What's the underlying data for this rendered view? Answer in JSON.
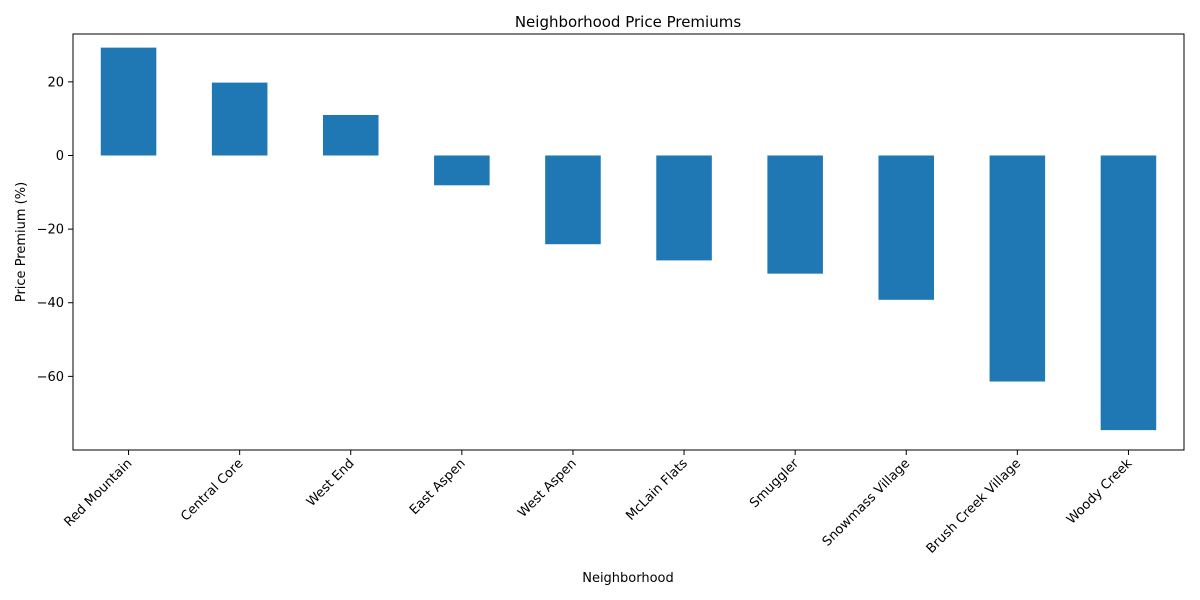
{
  "chart_data": {
    "type": "bar",
    "title": "Neighborhood Price Premiums",
    "xlabel": "Neighborhood",
    "ylabel": "Price Premium (%)",
    "categories": [
      "Red Mountain",
      "Central Core",
      "West End",
      "East Aspen",
      "West Aspen",
      "McLain Flats",
      "Smuggler",
      "Snowmass Village",
      "Brush Creek Village",
      "Woody Creek"
    ],
    "values": [
      29.3,
      19.8,
      11.0,
      -8.1,
      -24.1,
      -28.5,
      -32.1,
      -39.2,
      -61.4,
      -74.6
    ],
    "ylim": [
      -80,
      33
    ],
    "yticks": [
      20,
      0,
      -20,
      -40,
      -60
    ],
    "ytick_labels": [
      "20",
      "0",
      "−20",
      "−40",
      "−60"
    ],
    "grid": false,
    "legend": "none",
    "bar_color": "#1f77b4"
  }
}
